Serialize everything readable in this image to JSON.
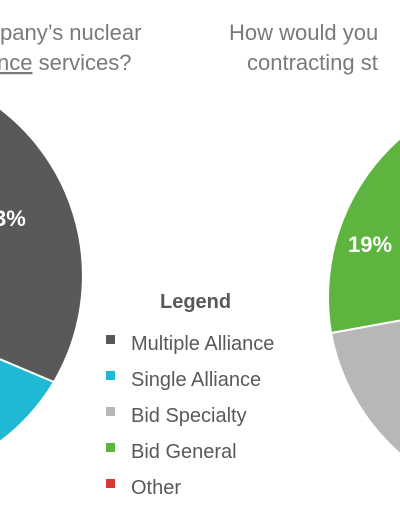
{
  "chart_data": [
    {
      "type": "pie",
      "title_lines": [
        "pany’s nuclear",
        "nce services?"
      ],
      "title_line2_underlined": "nce",
      "title_line2_rest": " services?",
      "slices": [
        {
          "category": "Multiple Alliance",
          "color": "#595959",
          "label": "3%"
        },
        {
          "category": "Single Alliance",
          "color": "#1fb9d6",
          "label": ""
        }
      ]
    },
    {
      "type": "pie",
      "title_lines": [
        "How would you",
        "contracting st"
      ],
      "slices": [
        {
          "category": "Bid General",
          "color": "#5db53f",
          "label": "19%"
        },
        {
          "category": "Bid Specialty",
          "color": "#b7b7b7",
          "label": ""
        }
      ]
    }
  ],
  "legend": {
    "title": "Legend",
    "items": [
      {
        "label": "Multiple Alliance",
        "color": "#595959"
      },
      {
        "label": "Single Alliance",
        "color": "#1fb9d6"
      },
      {
        "label": "Bid Specialty",
        "color": "#b7b7b7"
      },
      {
        "label": "Bid General",
        "color": "#5db53f"
      },
      {
        "label": "Other",
        "color": "#d93a36"
      }
    ]
  }
}
